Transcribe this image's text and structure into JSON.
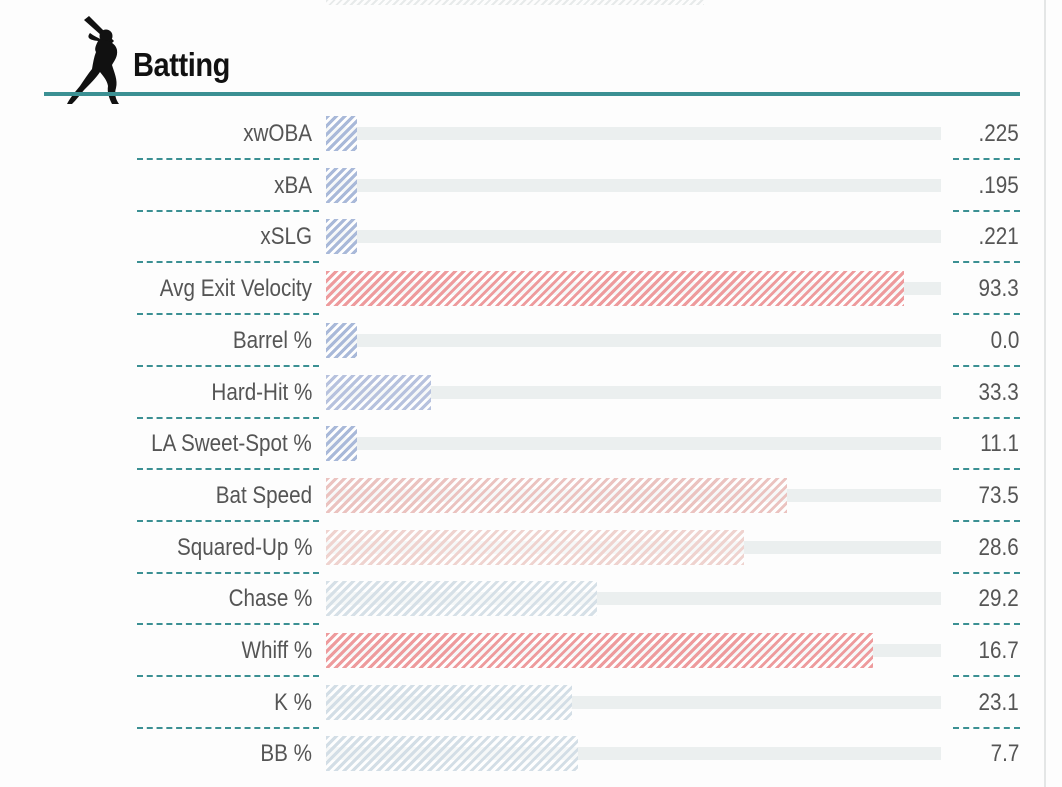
{
  "section": {
    "title": "Batting",
    "icon": "batter-silhouette-icon",
    "accent_color": "#3b9093"
  },
  "chart_data": {
    "type": "bar",
    "orientation": "horizontal",
    "scale": "percentile",
    "xlim": [
      0,
      100
    ],
    "title": "Batting",
    "rows": [
      {
        "label": "xwOBA",
        "value_display": ".225",
        "percentile": 5,
        "color": "#a9b9d9"
      },
      {
        "label": "xBA",
        "value_display": ".195",
        "percentile": 5,
        "color": "#a9b9d9"
      },
      {
        "label": "xSLG",
        "value_display": ".221",
        "percentile": 5,
        "color": "#a9b9d9"
      },
      {
        "label": "Avg Exit Velocity",
        "value_display": "93.3",
        "percentile": 94,
        "color": "#ee9b9d"
      },
      {
        "label": "Barrel %",
        "value_display": "0.0",
        "percentile": 5,
        "color": "#a9b9d9"
      },
      {
        "label": "Hard-Hit %",
        "value_display": "33.3",
        "percentile": 17,
        "color": "#b7c2de"
      },
      {
        "label": "LA Sweet-Spot %",
        "value_display": "11.1",
        "percentile": 5,
        "color": "#a9b9d9"
      },
      {
        "label": "Bat Speed",
        "value_display": "73.5",
        "percentile": 75,
        "color": "#ebc3c0"
      },
      {
        "label": "Squared-Up %",
        "value_display": "28.6",
        "percentile": 68,
        "color": "#efd3cf"
      },
      {
        "label": "Chase %",
        "value_display": "29.2",
        "percentile": 44,
        "color": "#d6e0e7"
      },
      {
        "label": "Whiff %",
        "value_display": "16.7",
        "percentile": 89,
        "color": "#ee9b9d"
      },
      {
        "label": "K %",
        "value_display": "23.1",
        "percentile": 40,
        "color": "#d3dee6"
      },
      {
        "label": "BB %",
        "value_display": "7.7",
        "percentile": 41,
        "color": "#d3dee6"
      }
    ]
  }
}
